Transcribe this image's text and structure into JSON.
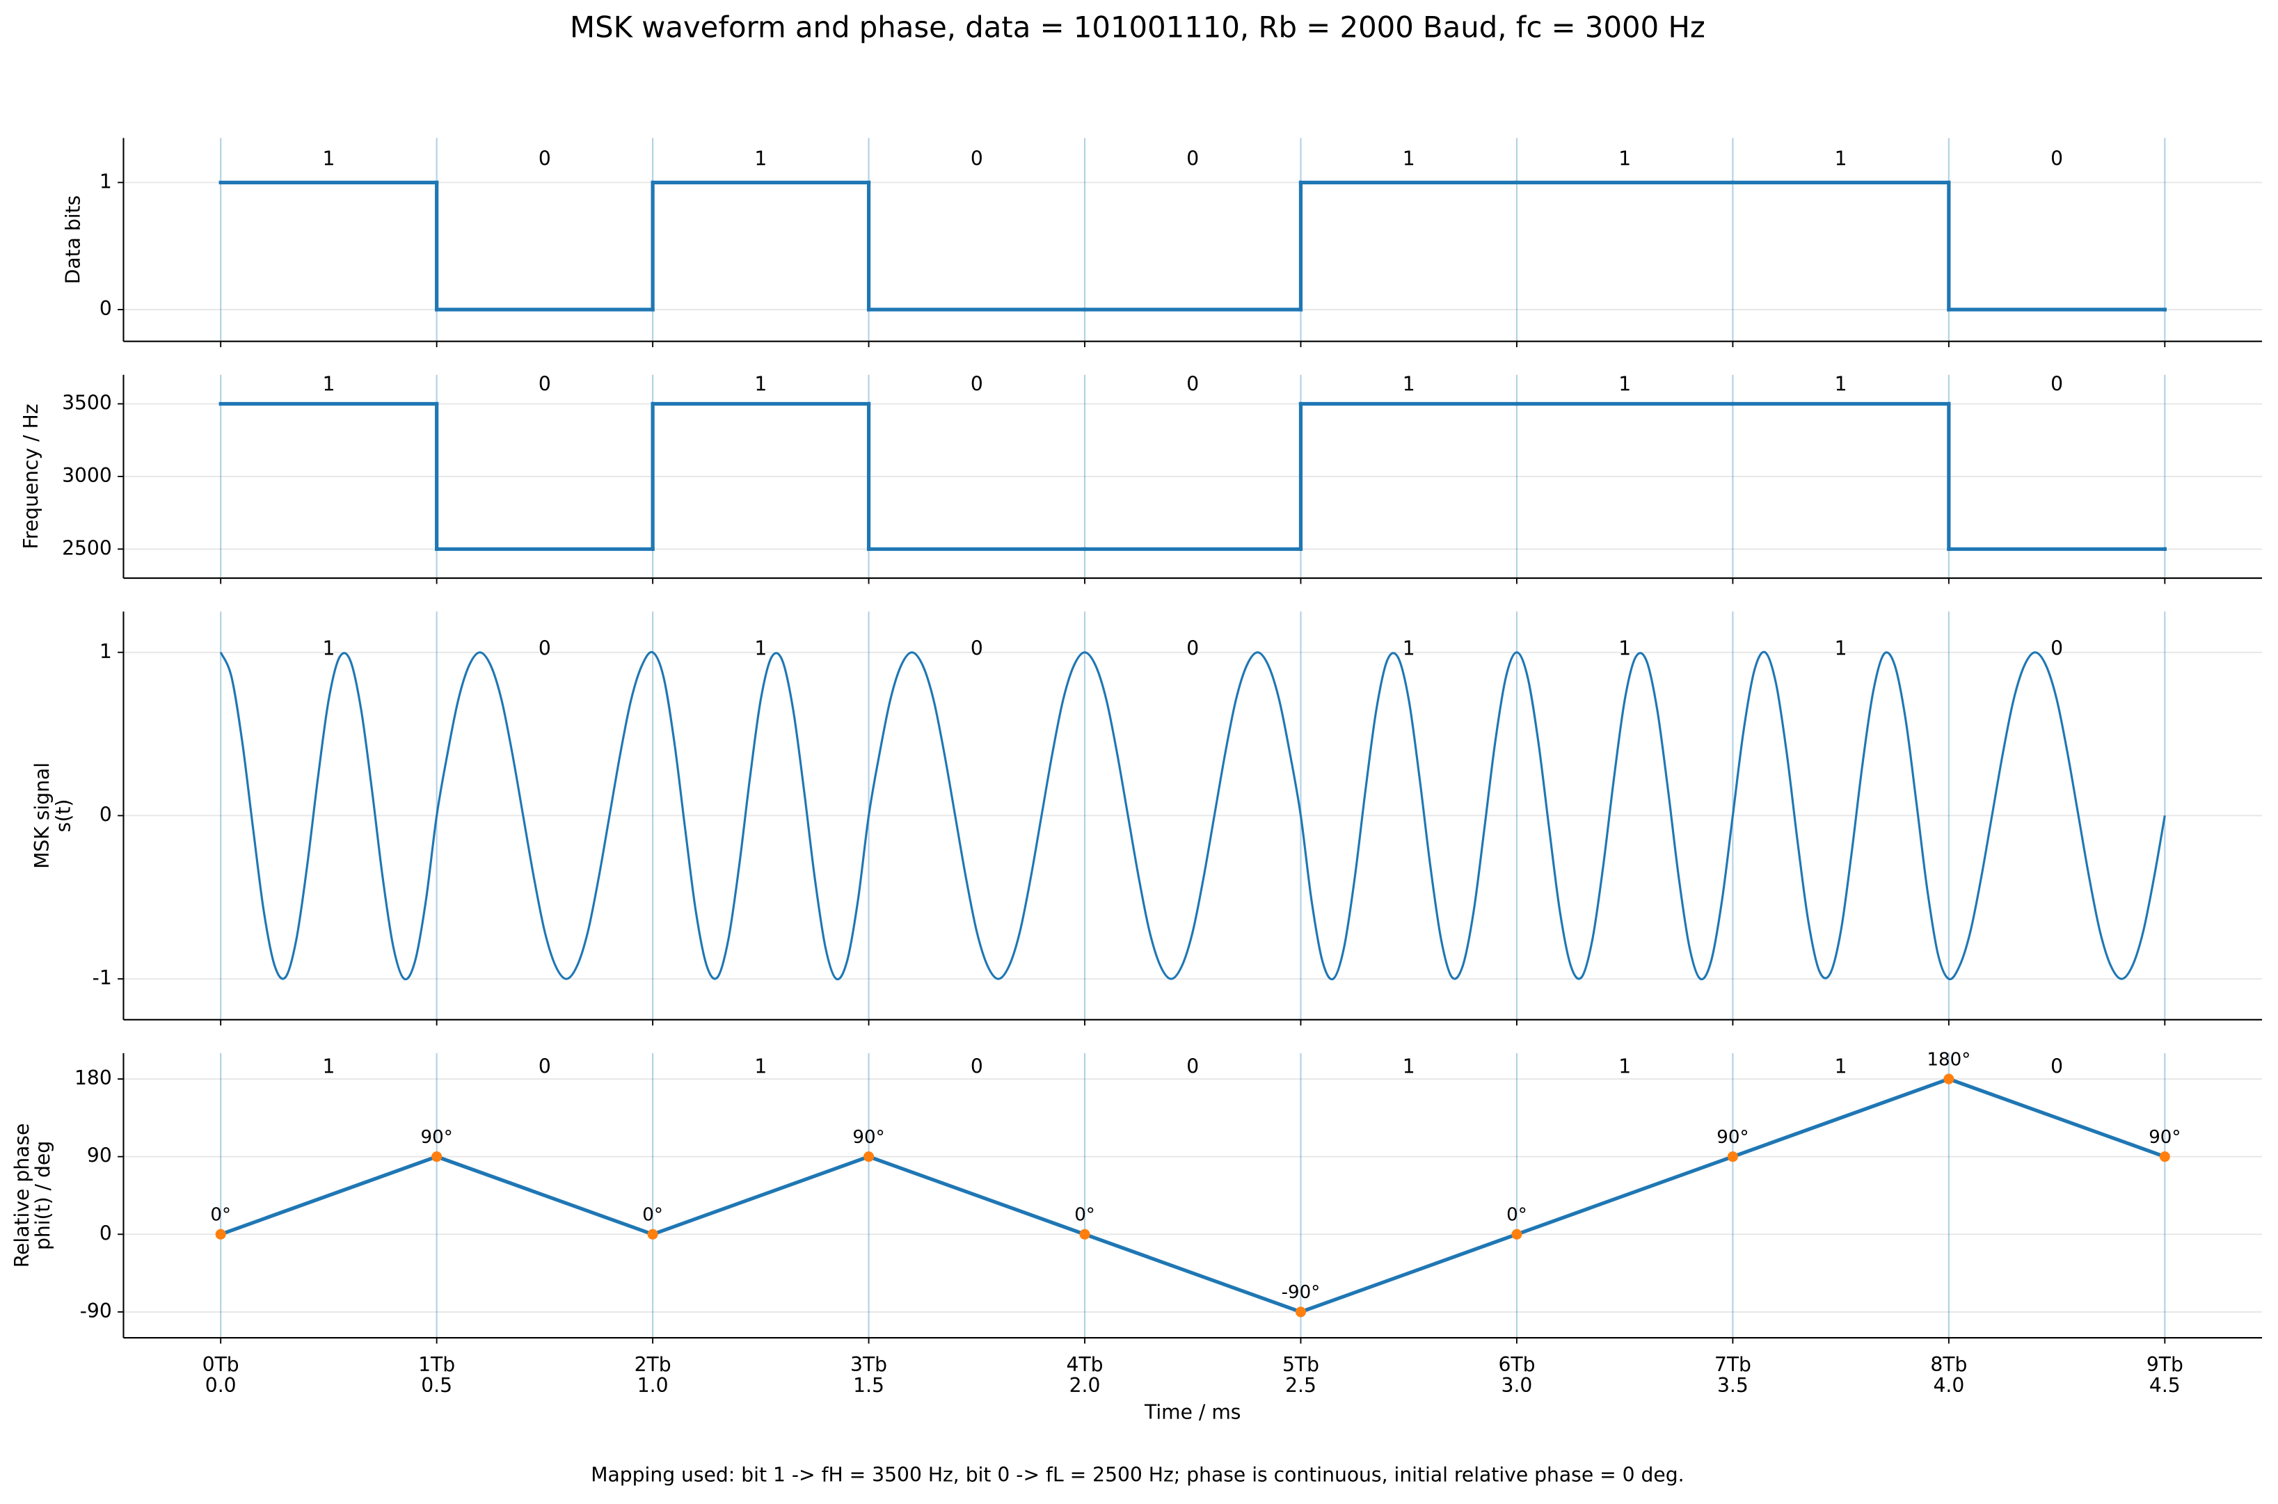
{
  "title": "MSK waveform and phase, data = 101001110, Rb = 2000 Baud, fc = 3000 Hz",
  "note": "Mapping used: bit 1 -> fH = 3500 Hz, bit 0 -> fL = 2500 Hz; phase is continuous, initial relative phase = 0 deg.",
  "chart_data": [
    {
      "type": "step",
      "ylabel": "Data bits",
      "color": "#1f77b4",
      "bit_labels": [
        "1",
        "0",
        "1",
        "0",
        "0",
        "1",
        "1",
        "1",
        "0"
      ],
      "x": [
        0,
        0.5,
        1,
        1.5,
        2,
        2.5,
        3,
        3.5,
        4,
        4.5
      ],
      "values": [
        1,
        0,
        1,
        0,
        0,
        1,
        1,
        1,
        0,
        0
      ],
      "ylim": [
        -0.25,
        1.35
      ],
      "yticks": [
        0,
        1
      ],
      "grid": true
    },
    {
      "type": "step",
      "ylabel": "Frequency / Hz",
      "color": "#1f77b4",
      "bit_labels": [
        "1",
        "0",
        "1",
        "0",
        "0",
        "1",
        "1",
        "1",
        "0"
      ],
      "x": [
        0,
        0.5,
        1,
        1.5,
        2,
        2.5,
        3,
        3.5,
        4,
        4.5
      ],
      "values": [
        3500,
        2500,
        3500,
        2500,
        2500,
        3500,
        3500,
        3500,
        2500,
        2500
      ],
      "ylim": [
        2300,
        3700
      ],
      "yticks": [
        2500,
        3000,
        3500
      ],
      "grid": true
    },
    {
      "type": "line",
      "ylabel": "MSK signal\ns(t)",
      "color": "#1f77b4",
      "bit_labels": [
        "1",
        "0",
        "1",
        "0",
        "0",
        "1",
        "1",
        "1",
        "0"
      ],
      "x": [
        0,
        0.025,
        0.05,
        0.075,
        0.1,
        0.125,
        0.15,
        0.175,
        0.2,
        0.225,
        0.25,
        0.275,
        0.3,
        0.325,
        0.35,
        0.375,
        0.4,
        0.425,
        0.45,
        0.475,
        0.5,
        0.525,
        0.55,
        0.575,
        0.6,
        0.625,
        0.65,
        0.675,
        0.7,
        0.725,
        0.75,
        0.775,
        0.8,
        0.825,
        0.85,
        0.875,
        0.9,
        0.925,
        0.95,
        0.975,
        1,
        1.025,
        1.05,
        1.075,
        1.1,
        1.125,
        1.15,
        1.175,
        1.2,
        1.225,
        1.25,
        1.275,
        1.3,
        1.325,
        1.35,
        1.375,
        1.4,
        1.425,
        1.45,
        1.475,
        1.5,
        1.525,
        1.55,
        1.575,
        1.6,
        1.625,
        1.65,
        1.675,
        1.7,
        1.725,
        1.75,
        1.775,
        1.8,
        1.825,
        1.85,
        1.875,
        1.9,
        1.925,
        1.95,
        1.975,
        2,
        2.025,
        2.05,
        2.075,
        2.1,
        2.125,
        2.15,
        2.175,
        2.2,
        2.225,
        2.25,
        2.275,
        2.3,
        2.325,
        2.35,
        2.375,
        2.4,
        2.425,
        2.45,
        2.475,
        2.5,
        2.525,
        2.55,
        2.575,
        2.6,
        2.625,
        2.65,
        2.675,
        2.7,
        2.725,
        2.75,
        2.775,
        2.8,
        2.825,
        2.85,
        2.875,
        2.9,
        2.925,
        2.95,
        2.975,
        3,
        3.025,
        3.05,
        3.075,
        3.1,
        3.125,
        3.15,
        3.175,
        3.2,
        3.225,
        3.25,
        3.275,
        3.3,
        3.325,
        3.35,
        3.375,
        3.4,
        3.425,
        3.45,
        3.475,
        3.5,
        3.525,
        3.55,
        3.575,
        3.6,
        3.625,
        3.65,
        3.675,
        3.7,
        3.725,
        3.75,
        3.775,
        3.8,
        3.825,
        3.85,
        3.875,
        3.9,
        3.925,
        3.95,
        3.975,
        4,
        4.025,
        4.05,
        4.075,
        4.1,
        4.125,
        4.15,
        4.175,
        4.2,
        4.225,
        4.25,
        4.275,
        4.3,
        4.325,
        4.35,
        4.375,
        4.4,
        4.425,
        4.45,
        4.475,
        4.5
      ],
      "values": [
        1,
        0.85,
        0.45,
        -0.08,
        -0.59,
        -0.92,
        -0.99,
        -0.76,
        -0.31,
        0.23,
        0.71,
        0.97,
        0.95,
        0.65,
        0.16,
        -0.38,
        -0.81,
        -1,
        -0.89,
        -0.52,
        0,
        0.38,
        0.71,
        0.92,
        1,
        0.92,
        0.71,
        0.38,
        0,
        -0.38,
        -0.71,
        -0.92,
        -1,
        -0.92,
        -0.71,
        -0.38,
        0,
        0.38,
        0.71,
        0.92,
        1,
        0.85,
        0.45,
        -0.08,
        -0.59,
        -0.92,
        -0.99,
        -0.76,
        -0.31,
        0.23,
        0.71,
        0.97,
        0.95,
        0.65,
        0.16,
        -0.38,
        -0.81,
        -1,
        -0.89,
        -0.52,
        0,
        0.38,
        0.71,
        0.92,
        1,
        0.92,
        0.71,
        0.38,
        0,
        -0.38,
        -0.71,
        -0.92,
        -1,
        -0.92,
        -0.71,
        -0.38,
        0,
        0.38,
        0.71,
        0.92,
        1,
        0.92,
        0.71,
        0.38,
        0,
        -0.38,
        -0.71,
        -0.92,
        -1,
        -0.92,
        -0.71,
        -0.38,
        0,
        0.38,
        0.71,
        0.92,
        1,
        0.92,
        0.71,
        0.38,
        0,
        -0.52,
        -0.89,
        -1,
        -0.81,
        -0.38,
        0.16,
        0.65,
        0.95,
        0.97,
        0.71,
        0.23,
        -0.31,
        -0.76,
        -0.99,
        -0.92,
        -0.59,
        -0.08,
        0.45,
        0.85,
        1,
        0.85,
        0.45,
        -0.08,
        -0.59,
        -0.92,
        -0.99,
        -0.76,
        -0.31,
        0.23,
        0.71,
        0.97,
        0.95,
        0.65,
        0.16,
        -0.38,
        -0.81,
        -1,
        -0.89,
        -0.52,
        0,
        0.52,
        0.89,
        1,
        0.81,
        0.38,
        -0.16,
        -0.65,
        -0.95,
        -0.97,
        -0.71,
        -0.23,
        0.31,
        0.76,
        0.99,
        0.92,
        0.59,
        0.08,
        -0.45,
        -0.85,
        -1,
        -0.92,
        -0.71,
        -0.38,
        0,
        0.38,
        0.71,
        0.92,
        1,
        0.92,
        0.71,
        0.38,
        0,
        -0.38,
        -0.71,
        -0.92,
        -1,
        -0.92,
        -0.71,
        -0.38,
        0
      ],
      "ylim": [
        -1.25,
        1.25
      ],
      "yticks": [
        -1,
        0,
        1
      ],
      "grid": true
    },
    {
      "type": "line",
      "ylabel": "Relative phase\nphi(t) / deg",
      "xlabel": "Time / ms",
      "color": "#1f77b4",
      "markers": true,
      "marker_color": "#ff7f0e",
      "bit_labels": [
        "1",
        "0",
        "1",
        "0",
        "0",
        "1",
        "1",
        "1",
        "0"
      ],
      "x": [
        0,
        0.5,
        1,
        1.5,
        2,
        2.5,
        3,
        3.5,
        4,
        4.5
      ],
      "values": [
        0,
        90,
        0,
        90,
        0,
        -90,
        0,
        90,
        180,
        90
      ],
      "value_labels": [
        "0°",
        "90°",
        "0°",
        "90°",
        "0°",
        "-90°",
        "0°",
        "90°",
        "180°",
        "90°"
      ],
      "ylim": [
        -120,
        210
      ],
      "yticks": [
        -90,
        0,
        90,
        180
      ],
      "grid": true,
      "xlim": [
        -0.225,
        4.725
      ],
      "xticks": [
        {
          "value": 0,
          "label": "0Tb\n0.0"
        },
        {
          "value": 0.5,
          "label": "1Tb\n0.5"
        },
        {
          "value": 1,
          "label": "2Tb\n1.0"
        },
        {
          "value": 1.5,
          "label": "3Tb\n1.5"
        },
        {
          "value": 2,
          "label": "4Tb\n2.0"
        },
        {
          "value": 2.5,
          "label": "5Tb\n2.5"
        },
        {
          "value": 3,
          "label": "6Tb\n3.0"
        },
        {
          "value": 3.5,
          "label": "7Tb\n3.5"
        },
        {
          "value": 4,
          "label": "8Tb\n4.0"
        },
        {
          "value": 4.5,
          "label": "9Tb\n4.5"
        }
      ]
    }
  ]
}
